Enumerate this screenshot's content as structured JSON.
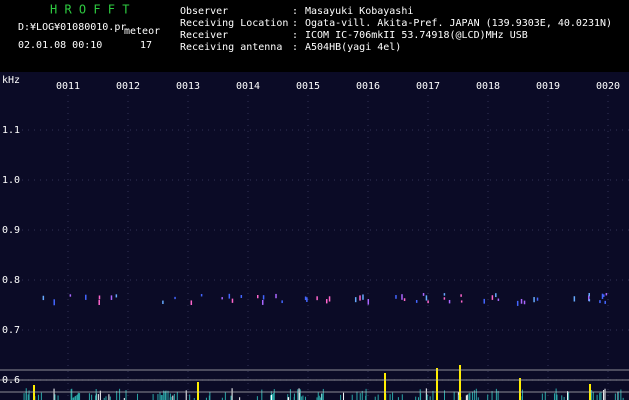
{
  "app": {
    "title": "H R O F F T",
    "file": "D:¥LOG¥01080010.pr",
    "mode": "meteor",
    "datetime": "02.01.08 00:10",
    "count": "17"
  },
  "info": {
    "separator": ":",
    "rows": [
      {
        "label": "Observer",
        "value": "Masayuki Kobayashi"
      },
      {
        "label": "Receiving Location",
        "value": "Ogata-vill. Akita-Pref. JAPAN (139.9303E, 40.0231N)"
      },
      {
        "label": "Receiver",
        "value": "ICOM IC-706mkII 53.74918(@LCD)MHz USB"
      },
      {
        "label": "Receiving antenna",
        "value": "A504HB(yagi 4el)"
      }
    ]
  },
  "axis": {
    "unit": "kHz",
    "freq_labels": [
      "1.1",
      "1.0",
      "0.9",
      "0.8",
      "0.7",
      "0.6"
    ],
    "time_labels": [
      "0011",
      "0012",
      "0013",
      "0014",
      "0015",
      "0016",
      "0017",
      "0018",
      "0019",
      "0020"
    ]
  }
}
